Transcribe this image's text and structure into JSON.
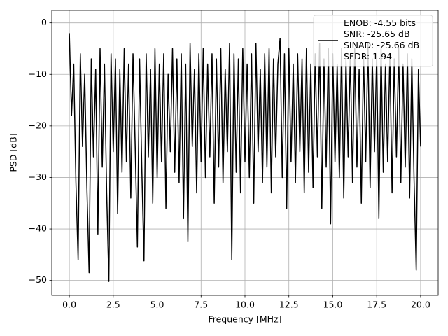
{
  "chart_data": {
    "type": "line",
    "xlabel": "Frequency [MHz]",
    "ylabel": "PSD [dB]",
    "x": [
      0,
      0.125,
      0.25,
      0.375,
      0.5,
      0.625,
      0.75,
      0.875,
      1,
      1.125,
      1.25,
      1.375,
      1.5,
      1.625,
      1.75,
      1.875,
      2,
      2.125,
      2.25,
      2.375,
      2.5,
      2.625,
      2.75,
      2.875,
      3,
      3.125,
      3.25,
      3.375,
      3.5,
      3.625,
      3.75,
      3.875,
      4,
      4.125,
      4.25,
      4.375,
      4.5,
      4.625,
      4.75,
      4.875,
      5,
      5.125,
      5.25,
      5.375,
      5.5,
      5.625,
      5.75,
      5.875,
      6,
      6.125,
      6.25,
      6.375,
      6.5,
      6.625,
      6.75,
      6.875,
      7,
      7.125,
      7.25,
      7.375,
      7.5,
      7.625,
      7.75,
      7.875,
      8,
      8.125,
      8.25,
      8.375,
      8.5,
      8.625,
      8.75,
      8.875,
      9,
      9.125,
      9.25,
      9.375,
      9.5,
      9.625,
      9.75,
      9.875,
      10,
      10.125,
      10.25,
      10.375,
      10.5,
      10.625,
      10.75,
      10.875,
      11,
      11.125,
      11.25,
      11.375,
      11.5,
      11.625,
      11.75,
      11.875,
      12,
      12.125,
      12.25,
      12.375,
      12.5,
      12.625,
      12.75,
      12.875,
      13,
      13.125,
      13.25,
      13.375,
      13.5,
      13.625,
      13.75,
      13.875,
      14,
      14.125,
      14.25,
      14.375,
      14.5,
      14.625,
      14.75,
      14.875,
      15,
      15.125,
      15.25,
      15.375,
      15.5,
      15.625,
      15.75,
      15.875,
      16,
      16.125,
      16.25,
      16.375,
      16.5,
      16.625,
      16.75,
      16.875,
      17,
      17.125,
      17.25,
      17.375,
      17.5,
      17.625,
      17.75,
      17.875,
      18,
      18.125,
      18.25,
      18.375,
      18.5,
      18.625,
      18.75,
      18.875,
      19,
      19.125,
      19.25,
      19.375,
      19.5,
      19.625,
      19.75,
      19.875,
      20
    ],
    "series": [
      {
        "name": "ENOB: -4.55 bits\nSNR: -25.65 dB\nSINAD: -25.66 dB\nSFDR: 1.94",
        "color": "#000000",
        "values": [
          -2,
          -18,
          -8,
          -31,
          -46,
          -6,
          -24,
          -10,
          -32,
          -48.5,
          -7,
          -26,
          -9,
          -41,
          -5,
          -28,
          -8,
          -33,
          -50.2,
          -6,
          -25,
          -7,
          -37,
          -9,
          -29,
          -5,
          -27,
          -8,
          -34,
          -6,
          -24,
          -43.5,
          -7,
          -28,
          -46.2,
          -6,
          -26,
          -9,
          -35,
          -5,
          -30,
          -8,
          -27,
          -6,
          -36,
          -10,
          -25,
          -5,
          -29,
          -7,
          -31,
          -6,
          -38,
          -8,
          -42.5,
          -4,
          -24,
          -9,
          -33,
          -6,
          -27,
          -5,
          -30,
          -8,
          -26,
          -6,
          -35,
          -7,
          -28,
          -5,
          -31,
          -9,
          -25,
          -4,
          -46,
          -6,
          -29,
          -7,
          -33,
          -5,
          -27,
          -8,
          -30,
          -6,
          -35,
          -4,
          -25,
          -9,
          -31,
          -6,
          -28,
          -5,
          -33,
          -7,
          -26,
          -8,
          -3,
          -30,
          -6,
          -36,
          -5,
          -27,
          -8,
          -31,
          -6,
          -25,
          -7,
          -33,
          -5,
          -29,
          -8,
          -32,
          -6,
          -26,
          -4,
          -36,
          -7,
          -28,
          -5,
          -39,
          -6,
          -27,
          -8,
          -30,
          -5,
          -34,
          -7,
          -26,
          -6,
          -31,
          -5,
          -28,
          -9,
          -35,
          -6,
          -27,
          -4,
          -32,
          -7,
          -25,
          -6,
          -38,
          -5,
          -29,
          -8,
          -27,
          -6,
          -33,
          -7,
          -26,
          -5,
          -31,
          -8,
          -28,
          -6,
          -34,
          -7,
          -30,
          -48,
          -9,
          -24
        ]
      }
    ],
    "xlim": [
      -1.0,
      21.0
    ],
    "ylim": [
      -52.9,
      2.4
    ],
    "xticks": [
      {
        "value": 0,
        "label": "0.0"
      },
      2.5,
      {
        "value": 5,
        "label": "5.0"
      },
      7.5,
      {
        "value": 10,
        "label": "10.0"
      },
      12.5,
      {
        "value": 15,
        "label": "15.0"
      },
      17.5,
      {
        "value": 20,
        "label": "20.0"
      }
    ],
    "yticks": [
      {
        "value": 0,
        "label": "0"
      },
      {
        "value": -10,
        "label": "−10"
      },
      {
        "value": -20,
        "label": "−20"
      },
      {
        "value": -30,
        "label": "−30"
      },
      {
        "value": -40,
        "label": "−40"
      },
      {
        "value": -50,
        "label": "−50"
      }
    ],
    "grid": true,
    "legend": "upper right"
  }
}
